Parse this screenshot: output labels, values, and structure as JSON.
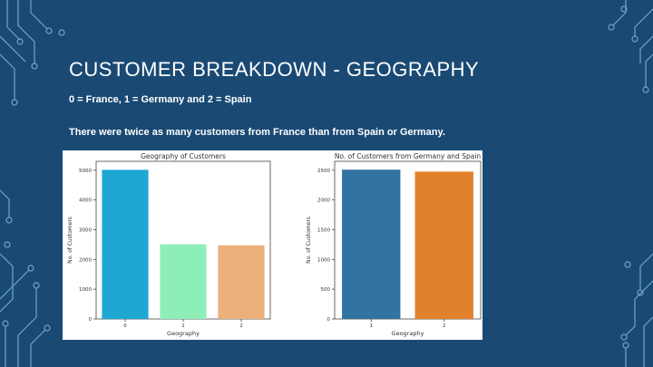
{
  "slide": {
    "title": "CUSTOMER BREAKDOWN - GEOGRAPHY",
    "encoding_note": "0 = France, 1 = Germany and 2 = Spain",
    "summary": "There were twice as many customers from France than from Spain or Germany."
  },
  "colors": {
    "background": "#1a4a74",
    "circuit_lines": "#7ab8d8"
  },
  "chart_data": [
    {
      "type": "bar",
      "title": "Geography of Customers",
      "xlabel": "Geography",
      "ylabel": "No. of Customers",
      "categories": [
        "0",
        "1",
        "2"
      ],
      "values": [
        5014,
        2509,
        2477
      ],
      "colors": [
        "#1fa7d4",
        "#8eeeb8",
        "#ecb07a"
      ],
      "yticks": [
        0,
        1000,
        2000,
        3000,
        4000,
        5000
      ],
      "ylim": [
        0,
        5300
      ],
      "grid": false
    },
    {
      "type": "bar",
      "title": "No. of Customers from Germany and Spain",
      "xlabel": "Geography",
      "ylabel": "No. of Customers",
      "categories": [
        "1",
        "2"
      ],
      "values": [
        2509,
        2477
      ],
      "colors": [
        "#3274a1",
        "#e1812c"
      ],
      "yticks": [
        0,
        500,
        1000,
        1500,
        2000,
        2500
      ],
      "ylim": [
        0,
        2650
      ],
      "grid": false
    }
  ]
}
